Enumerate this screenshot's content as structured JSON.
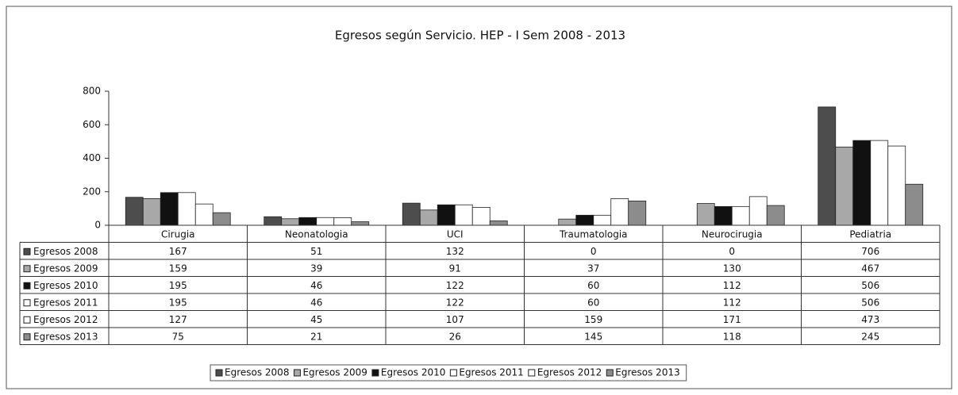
{
  "chart_data": {
    "type": "bar",
    "title": "Egresos según Servicio. HEP - I Sem 2008 - 2013",
    "categories": [
      "Cirugia",
      "Neonatologia",
      "UCI",
      "Traumatologia",
      "Neurocirugia",
      "Pediatria"
    ],
    "series": [
      {
        "name": "Egresos 2008",
        "color": "#4d4d4d",
        "values": [
          167,
          51,
          132,
          0,
          0,
          706
        ]
      },
      {
        "name": "Egresos 2009",
        "color": "#a8a8a8",
        "values": [
          159,
          39,
          91,
          37,
          130,
          467
        ]
      },
      {
        "name": "Egresos 2010",
        "color": "#111111",
        "values": [
          195,
          46,
          122,
          60,
          112,
          506
        ]
      },
      {
        "name": "Egresos 2011",
        "color": "#ffffff",
        "values": [
          195,
          46,
          122,
          60,
          112,
          506
        ]
      },
      {
        "name": "Egresos 2012",
        "color": "#ffffff",
        "values": [
          127,
          45,
          107,
          159,
          171,
          473
        ]
      },
      {
        "name": "Egresos 2013",
        "color": "#8c8c8c",
        "values": [
          75,
          21,
          26,
          145,
          118,
          245
        ]
      }
    ],
    "ylim": [
      0,
      800
    ],
    "yticks": [
      0,
      200,
      400,
      600,
      800
    ],
    "grid": false,
    "legend": "bottom"
  }
}
